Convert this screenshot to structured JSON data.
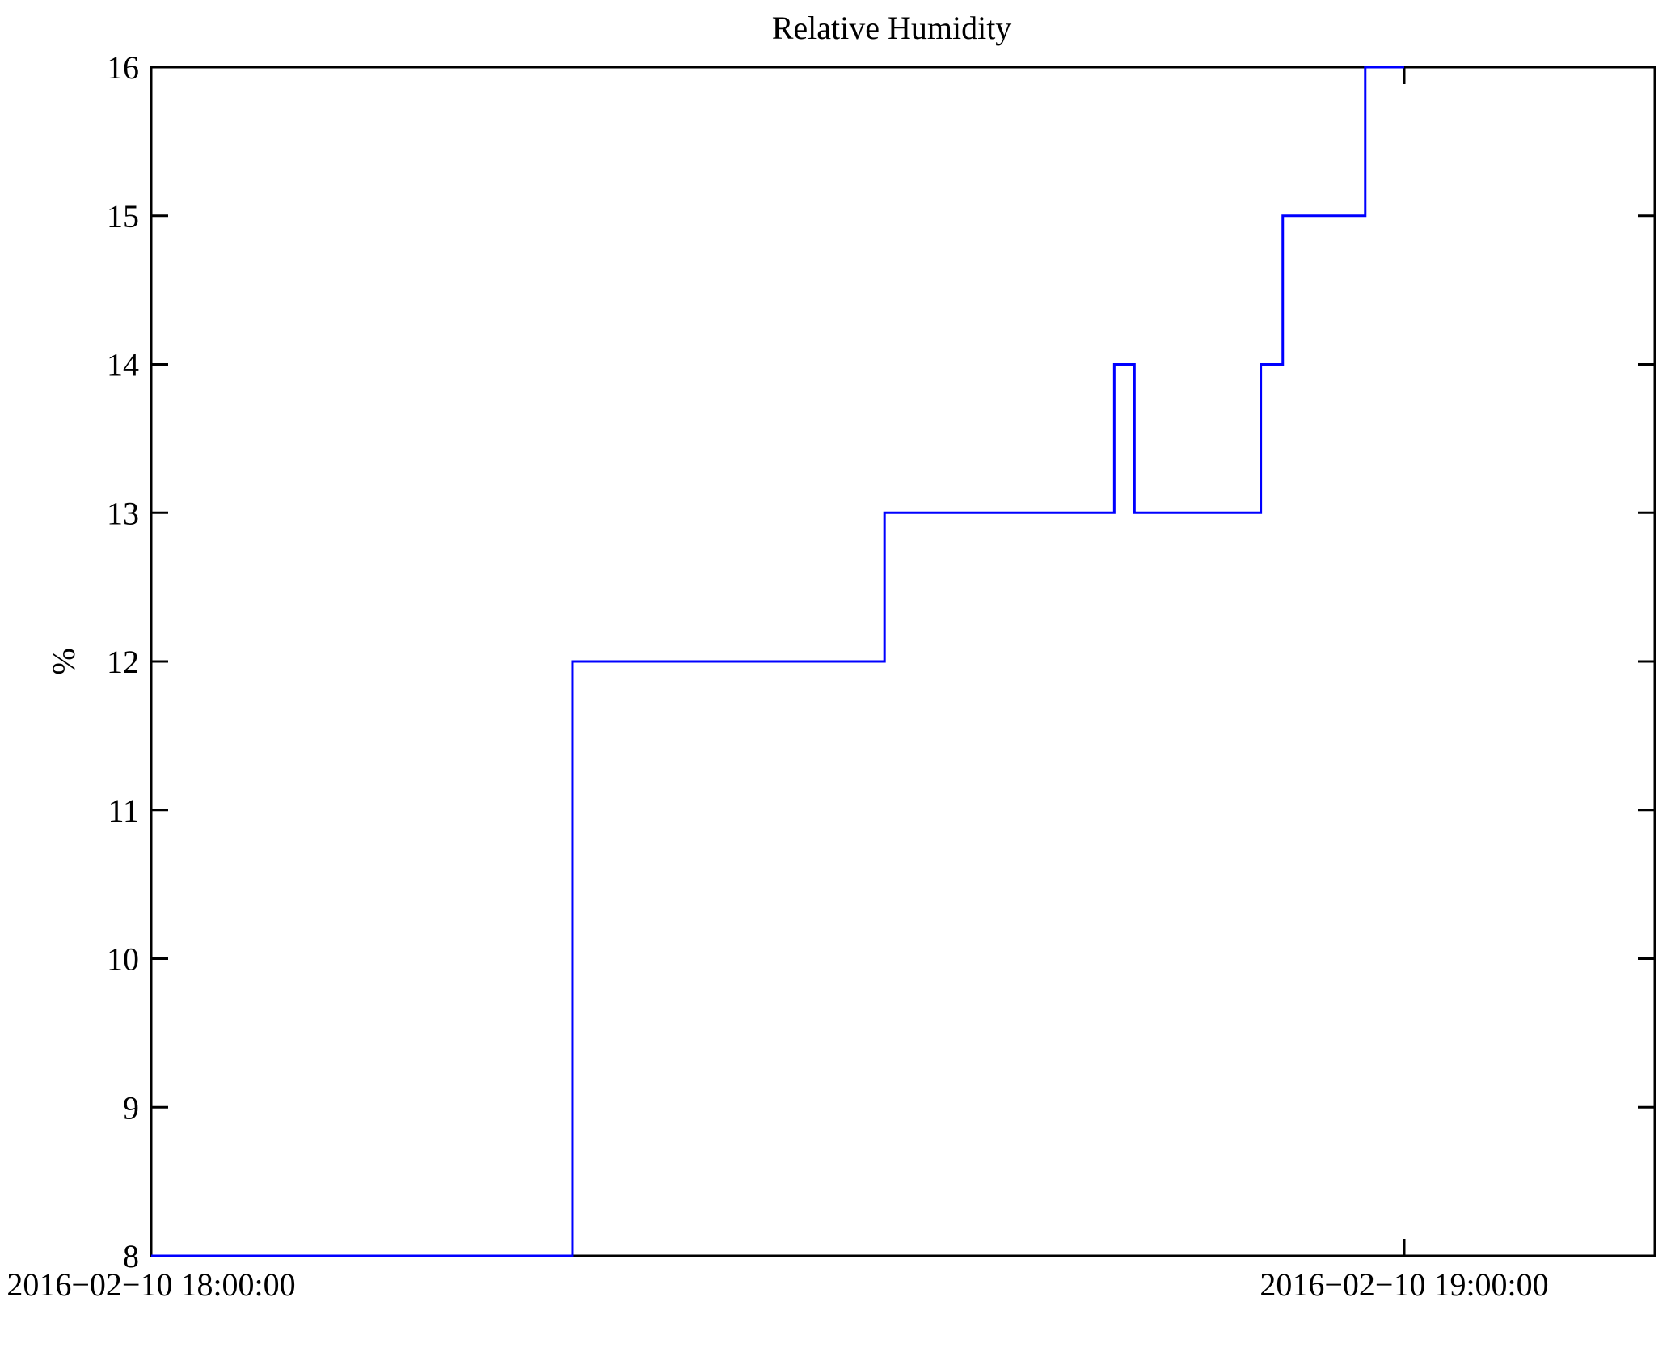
{
  "chart_data": {
    "type": "line",
    "step": "post",
    "title": "Relative Humidity",
    "xlabel": "",
    "ylabel": "%",
    "grid": false,
    "legend": null,
    "background": "#ffffff",
    "axis_color": "#000000",
    "line_color": "#0000ff",
    "ylim": [
      8,
      16
    ],
    "yticks": [
      8,
      9,
      10,
      11,
      12,
      13,
      14,
      15,
      16
    ],
    "xlim": [
      "2016-02-10 18:00:00",
      "2016-02-10 19:12:00"
    ],
    "xticks": [
      {
        "value": "2016-02-10 18:00:00",
        "label": "2016−02−10 18:00:00"
      },
      {
        "value": "2016-02-10 19:00:00",
        "label": "2016−02−10 19:00:00"
      }
    ],
    "series": [
      {
        "name": "relative-humidity",
        "unit": "%",
        "points": [
          {
            "t": "2016-02-10 18:00:00",
            "v": 8
          },
          {
            "t": "2016-02-10 18:20:10",
            "v": 12
          },
          {
            "t": "2016-02-10 18:35:07",
            "v": 13
          },
          {
            "t": "2016-02-10 18:46:07",
            "v": 14
          },
          {
            "t": "2016-02-10 18:47:05",
            "v": 13
          },
          {
            "t": "2016-02-10 18:53:08",
            "v": 14
          },
          {
            "t": "2016-02-10 18:54:11",
            "v": 15
          },
          {
            "t": "2016-02-10 18:58:08",
            "v": 16
          },
          {
            "t": "2016-02-10 19:00:00",
            "v": 16
          }
        ]
      }
    ]
  }
}
